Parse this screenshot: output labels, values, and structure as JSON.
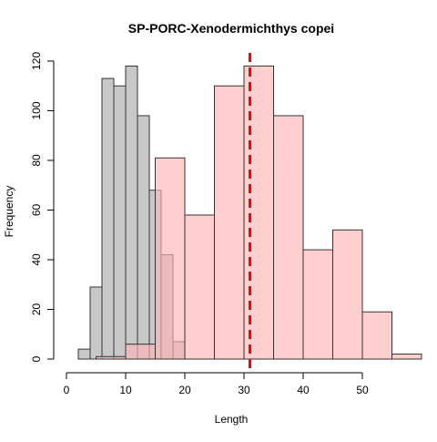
{
  "chart_data": {
    "type": "bar",
    "chart_kind": "overlapping-histogram",
    "title": "SP-PORC-Xenodermichthys copei",
    "xlabel": "Length",
    "ylabel": "Frequency",
    "xlim": [
      0,
      58
    ],
    "ylim": [
      0,
      120
    ],
    "x_ticks": [
      0,
      10,
      20,
      30,
      40,
      50
    ],
    "y_ticks": [
      0,
      20,
      40,
      60,
      80,
      100,
      120
    ],
    "grid": false,
    "legend": "none",
    "series": [
      {
        "fill": "#c8c8c8",
        "bin_width": 2,
        "bins": [
          {
            "start": 2,
            "end": 4,
            "value": 4
          },
          {
            "start": 4,
            "end": 6,
            "value": 29
          },
          {
            "start": 6,
            "end": 8,
            "value": 113
          },
          {
            "start": 8,
            "end": 10,
            "value": 110
          },
          {
            "start": 10,
            "end": 12,
            "value": 118
          },
          {
            "start": 12,
            "end": 14,
            "value": 98
          },
          {
            "start": 14,
            "end": 16,
            "value": 68
          },
          {
            "start": 16,
            "end": 18,
            "value": 42
          },
          {
            "start": 18,
            "end": 20,
            "value": 7
          }
        ]
      },
      {
        "fill": "#ffb4b4",
        "opacity": 0.65,
        "bin_width": 5,
        "bins": [
          {
            "start": 5,
            "end": 10,
            "value": 1
          },
          {
            "start": 10,
            "end": 15,
            "value": 6
          },
          {
            "start": 15,
            "end": 20,
            "value": 81
          },
          {
            "start": 20,
            "end": 25,
            "value": 58
          },
          {
            "start": 25,
            "end": 30,
            "value": 110
          },
          {
            "start": 30,
            "end": 35,
            "value": 118
          },
          {
            "start": 35,
            "end": 40,
            "value": 98
          },
          {
            "start": 40,
            "end": 45,
            "value": 44
          },
          {
            "start": 45,
            "end": 50,
            "value": 52
          },
          {
            "start": 50,
            "end": 55,
            "value": 19
          },
          {
            "start": 55,
            "end": 60,
            "value": 2
          }
        ]
      }
    ],
    "reference_line": {
      "x": 31,
      "color": "#ff0000",
      "style": "dashed"
    }
  }
}
